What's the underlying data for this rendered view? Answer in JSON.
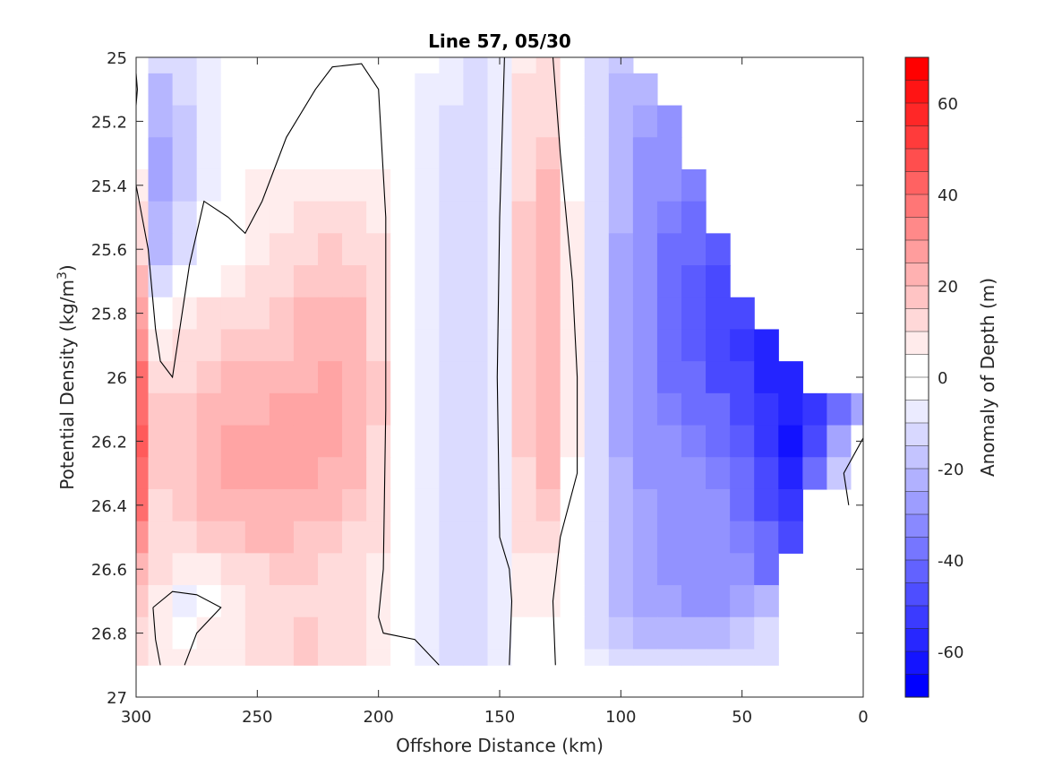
{
  "chart_data": {
    "type": "heatmap",
    "title": "Line 57, 05/30",
    "xlabel": "Offshore Distance (km)",
    "ylabel_main": "Potential Density (kg/m",
    "ylabel_sup": "3",
    "ylabel_end": ")",
    "x_reversed": true,
    "xlim": [
      0,
      300
    ],
    "ylim": [
      25,
      27
    ],
    "y_reversed": true,
    "x_ticks": [
      300,
      250,
      200,
      150,
      100,
      50,
      0
    ],
    "x_tick_labels": [
      "300",
      "250",
      "200",
      "150",
      "100",
      "50",
      "0"
    ],
    "y_ticks": [
      25,
      25.2,
      25.4,
      25.6,
      25.8,
      26,
      26.2,
      26.4,
      26.6,
      26.8,
      27
    ],
    "y_tick_labels": [
      "25",
      "25.2",
      "25.4",
      "25.6",
      "25.8",
      "26",
      "26.2",
      "26.4",
      "26.6",
      "26.8",
      "27"
    ],
    "grid": false,
    "colorbar": {
      "label": "Anomaly of Depth (m)",
      "range": [
        -70,
        70
      ],
      "step": 5,
      "ticks": [
        60,
        40,
        20,
        0,
        -20,
        -40,
        -60
      ],
      "tick_labels": [
        "60",
        "40",
        "20",
        "0",
        "-20",
        "-40",
        "-60"
      ],
      "max_color": "#ff0000",
      "mid_color": "#ffffff",
      "min_color": "#0000ff"
    },
    "grid_x_km": [
      300,
      290,
      280,
      270,
      260,
      250,
      240,
      230,
      220,
      210,
      200,
      190,
      180,
      170,
      160,
      150,
      140,
      130,
      120,
      110,
      100,
      90,
      80,
      70,
      60,
      50,
      40,
      30,
      20,
      10,
      0
    ],
    "grid_y_density": [
      25.0,
      25.1,
      25.2,
      25.3,
      25.4,
      25.5,
      25.6,
      25.7,
      25.8,
      25.9,
      26.0,
      26.1,
      26.2,
      26.3,
      26.4,
      26.5,
      26.6,
      26.7,
      26.8,
      26.9
    ],
    "anomaly_m": [
      [
        -2,
        -12,
        -8,
        -3,
        0,
        0,
        0,
        0,
        0,
        0,
        0,
        0,
        0,
        -3,
        -8,
        -5,
        6,
        8,
        0,
        -10,
        -15,
        null,
        null,
        null,
        null,
        null,
        null,
        null,
        null,
        null,
        null
      ],
      [
        -1,
        -18,
        -12,
        -4,
        0,
        0,
        0,
        0,
        0,
        0,
        0,
        0,
        -3,
        -6,
        -10,
        -5,
        8,
        10,
        0,
        -12,
        -18,
        -20,
        null,
        null,
        null,
        null,
        null,
        null,
        null,
        null,
        null
      ],
      [
        0,
        -22,
        -15,
        -5,
        0,
        0,
        0,
        0,
        0,
        0,
        0,
        0,
        -3,
        -8,
        -12,
        -5,
        10,
        12,
        0,
        -12,
        -20,
        -25,
        -28,
        null,
        null,
        null,
        null,
        null,
        null,
        null,
        null
      ],
      [
        2,
        -25,
        -16,
        -5,
        0,
        0,
        0,
        0,
        0,
        0,
        0,
        0,
        -3,
        -8,
        -12,
        -5,
        12,
        15,
        0,
        -12,
        -22,
        -28,
        -30,
        null,
        null,
        null,
        null,
        null,
        null,
        null,
        null
      ],
      [
        5,
        -25,
        -15,
        -4,
        0,
        3,
        5,
        6,
        6,
        5,
        3,
        0,
        -3,
        -8,
        -12,
        -5,
        12,
        18,
        2,
        -12,
        -22,
        -30,
        -32,
        -35,
        null,
        null,
        null,
        null,
        null,
        null,
        null
      ],
      [
        8,
        -22,
        -12,
        -2,
        0,
        4,
        7,
        9,
        10,
        9,
        6,
        0,
        -3,
        -8,
        -12,
        -5,
        14,
        20,
        3,
        -12,
        -22,
        -30,
        -35,
        -38,
        null,
        null,
        null,
        null,
        null,
        null,
        null
      ],
      [
        12,
        -18,
        -8,
        0,
        0,
        5,
        8,
        12,
        13,
        12,
        8,
        0,
        -3,
        -8,
        -12,
        -5,
        15,
        22,
        3,
        -12,
        -24,
        -32,
        -38,
        -42,
        -45,
        null,
        null,
        null,
        null,
        null,
        null
      ],
      [
        18,
        -12,
        -2,
        2,
        5,
        8,
        12,
        15,
        16,
        15,
        10,
        0,
        -3,
        -8,
        -12,
        -5,
        15,
        22,
        3,
        -12,
        -24,
        -32,
        -38,
        -45,
        -48,
        null,
        null,
        null,
        null,
        null,
        null
      ],
      [
        25,
        0,
        5,
        8,
        10,
        12,
        15,
        18,
        19,
        18,
        12,
        0,
        -3,
        -8,
        -12,
        -5,
        15,
        22,
        3,
        -12,
        -24,
        -32,
        -38,
        -45,
        -50,
        -52,
        null,
        null,
        null,
        null,
        null
      ],
      [
        32,
        5,
        8,
        12,
        14,
        15,
        17,
        20,
        21,
        19,
        12,
        0,
        -3,
        -8,
        -10,
        -5,
        15,
        22,
        3,
        -12,
        -24,
        -32,
        -38,
        -45,
        -50,
        -55,
        -58,
        null,
        null,
        null,
        null
      ],
      [
        38,
        10,
        12,
        15,
        18,
        18,
        20,
        22,
        23,
        20,
        13,
        0,
        -3,
        -8,
        -10,
        -5,
        15,
        22,
        3,
        -12,
        -24,
        -32,
        -38,
        -42,
        -48,
        -52,
        -58,
        -60,
        null,
        null,
        null
      ],
      [
        42,
        13,
        15,
        18,
        22,
        22,
        23,
        24,
        25,
        22,
        13,
        0,
        -3,
        -8,
        -10,
        -5,
        14,
        22,
        3,
        -12,
        -24,
        -32,
        -36,
        -38,
        -42,
        -48,
        -55,
        -62,
        -55,
        -40,
        -25
      ],
      [
        44,
        15,
        17,
        20,
        24,
        25,
        25,
        25,
        25,
        22,
        12,
        0,
        -3,
        -8,
        -10,
        -5,
        13,
        20,
        3,
        -12,
        -24,
        -30,
        -32,
        -34,
        -38,
        -45,
        -55,
        -65,
        -50,
        -25,
        0
      ],
      [
        42,
        14,
        16,
        20,
        24,
        25,
        25,
        24,
        22,
        20,
        12,
        0,
        -3,
        -8,
        -10,
        -5,
        12,
        18,
        2,
        -12,
        -22,
        -28,
        -30,
        -30,
        -35,
        -42,
        -52,
        -60,
        -42,
        -15,
        0
      ],
      [
        38,
        12,
        14,
        18,
        20,
        22,
        22,
        20,
        18,
        16,
        10,
        0,
        -3,
        -8,
        -10,
        -5,
        10,
        15,
        2,
        -12,
        -22,
        -25,
        -28,
        -28,
        -32,
        -38,
        -48,
        -55,
        null,
        null,
        null
      ],
      [
        30,
        10,
        12,
        15,
        17,
        18,
        18,
        16,
        15,
        12,
        8,
        0,
        -3,
        -8,
        -10,
        -5,
        8,
        10,
        0,
        -12,
        -20,
        -25,
        -28,
        -28,
        -30,
        -35,
        -42,
        -50,
        null,
        null,
        null
      ],
      [
        22,
        8,
        3,
        5,
        10,
        12,
        14,
        13,
        12,
        10,
        6,
        0,
        -3,
        -8,
        -10,
        -5,
        5,
        6,
        0,
        -10,
        -20,
        -25,
        -28,
        -28,
        -30,
        -32,
        -38,
        null,
        null,
        null,
        null
      ],
      [
        15,
        3,
        -3,
        0,
        5,
        10,
        12,
        12,
        10,
        8,
        5,
        0,
        -3,
        -8,
        -10,
        -5,
        3,
        4,
        0,
        -10,
        -18,
        -24,
        -26,
        -28,
        -28,
        -25,
        -20,
        null,
        null,
        null,
        null
      ],
      [
        10,
        5,
        2,
        3,
        6,
        10,
        12,
        13,
        11,
        9,
        5,
        0,
        -3,
        -8,
        -10,
        -5,
        2,
        2,
        0,
        -8,
        -15,
        -18,
        -20,
        -20,
        -18,
        -15,
        -12,
        null,
        null,
        null,
        null
      ],
      [
        8,
        6,
        4,
        5,
        7,
        10,
        12,
        13,
        12,
        10,
        5,
        0,
        -3,
        -8,
        -8,
        -4,
        0,
        0,
        0,
        -6,
        -10,
        -12,
        -12,
        -12,
        -10,
        -10,
        -8,
        null,
        null,
        null,
        null
      ]
    ],
    "zero_contours_km_density": [
      [
        [
          300,
          25.15
        ],
        [
          299.5,
          25.1
        ],
        [
          300,
          25.05
        ]
      ],
      [
        [
          300,
          25.4
        ],
        [
          295,
          25.6
        ],
        [
          292,
          25.85
        ],
        [
          290,
          25.95
        ],
        [
          285,
          26.0
        ],
        [
          282,
          25.85
        ],
        [
          278,
          25.65
        ],
        [
          272,
          25.45
        ],
        [
          262,
          25.5
        ],
        [
          255,
          25.55
        ],
        [
          248,
          25.45
        ],
        [
          238,
          25.25
        ],
        [
          226,
          25.1
        ],
        [
          219,
          25.03
        ],
        [
          207,
          25.02
        ],
        [
          200,
          25.1
        ],
        [
          197,
          25.5
        ],
        [
          197,
          26.1
        ],
        [
          198,
          26.6
        ],
        [
          200,
          26.75
        ],
        [
          198,
          26.8
        ],
        [
          185,
          26.82
        ],
        [
          175,
          26.9
        ]
      ],
      [
        [
          146,
          26.9
        ],
        [
          145,
          26.7
        ],
        [
          146,
          26.6
        ],
        [
          150,
          26.5
        ],
        [
          151,
          26.0
        ],
        [
          150,
          25.5
        ],
        [
          148,
          25.0
        ]
      ],
      [
        [
          127,
          26.9
        ],
        [
          128,
          26.7
        ],
        [
          125,
          26.5
        ],
        [
          118,
          26.3
        ],
        [
          118,
          26.0
        ],
        [
          120,
          25.7
        ],
        [
          125,
          25.3
        ],
        [
          128,
          25.0
        ]
      ],
      [
        [
          293,
          26.72
        ],
        [
          285,
          26.67
        ],
        [
          275,
          26.68
        ],
        [
          265,
          26.72
        ],
        [
          275,
          26.8
        ],
        [
          280,
          26.9
        ]
      ],
      [
        [
          290,
          26.9
        ],
        [
          292,
          26.82
        ],
        [
          293,
          26.72
        ]
      ],
      [
        [
          6,
          26.4
        ],
        [
          8,
          26.3
        ],
        [
          0,
          26.19
        ]
      ]
    ]
  }
}
